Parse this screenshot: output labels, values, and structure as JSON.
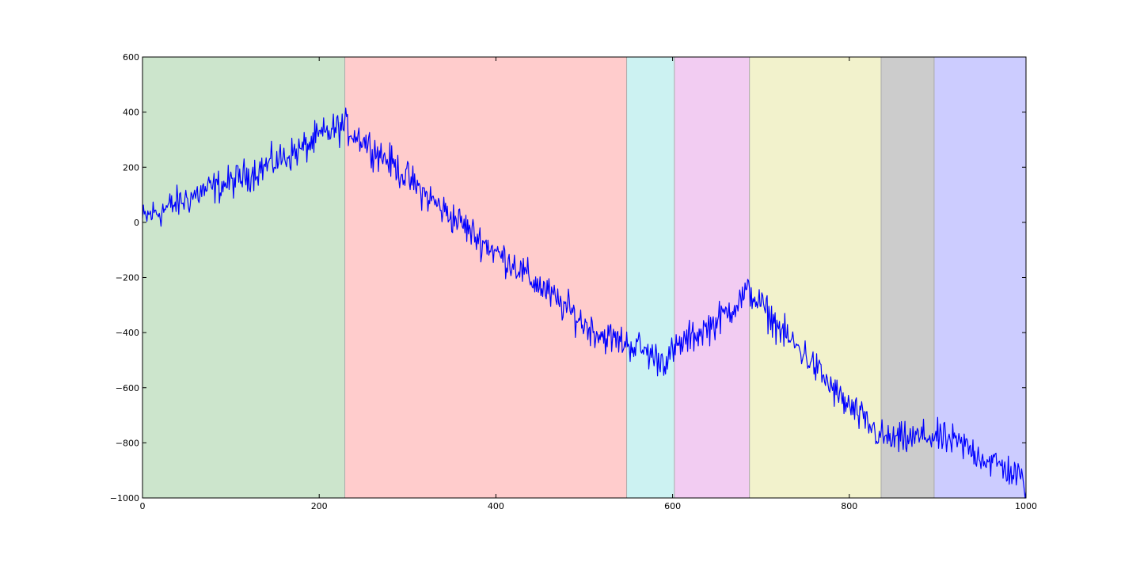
{
  "chart_data": {
    "type": "line",
    "title": "",
    "xlabel": "",
    "ylabel": "",
    "xlim": [
      0,
      1000
    ],
    "ylim": [
      -1000,
      600
    ],
    "grid": false,
    "legend": "none",
    "xticks": [
      0,
      200,
      400,
      600,
      800,
      1000
    ],
    "yticks": [
      600,
      400,
      200,
      0,
      -200,
      -400,
      -600,
      -800,
      -1000
    ],
    "xtick_labels": [
      "0",
      "200",
      "400",
      "600",
      "800",
      "1000"
    ],
    "ytick_labels": [
      "600",
      "400",
      "200",
      "0",
      "−200",
      "−400",
      "−600",
      "−800",
      "−1000"
    ],
    "regions": [
      {
        "x0": 0,
        "x1": 229,
        "color": "#cce5cc"
      },
      {
        "x0": 229,
        "x1": 548,
        "color": "#ffcccc"
      },
      {
        "x0": 548,
        "x1": 602,
        "color": "#ccf2f2"
      },
      {
        "x0": 602,
        "x1": 687,
        "color": "#f2ccf2"
      },
      {
        "x0": 687,
        "x1": 836,
        "color": "#f2f2cc"
      },
      {
        "x0": 836,
        "x1": 896,
        "color": "#cccccc"
      },
      {
        "x0": 896,
        "x1": 1000,
        "color": "#ccccff"
      }
    ],
    "series": [
      {
        "color": "#0000ff",
        "x": [
          0,
          10,
          20,
          30,
          40,
          50,
          60,
          70,
          80,
          90,
          100,
          110,
          120,
          130,
          140,
          150,
          160,
          170,
          180,
          190,
          200,
          210,
          220,
          229,
          240,
          250,
          260,
          270,
          280,
          290,
          300,
          310,
          320,
          330,
          340,
          350,
          360,
          370,
          380,
          390,
          400,
          410,
          420,
          430,
          440,
          450,
          460,
          470,
          480,
          490,
          500,
          510,
          520,
          530,
          540,
          548,
          560,
          570,
          580,
          590,
          602,
          610,
          620,
          630,
          640,
          650,
          660,
          670,
          680,
          687,
          700,
          710,
          720,
          730,
          740,
          750,
          760,
          770,
          780,
          790,
          800,
          810,
          820,
          830,
          836,
          850,
          860,
          870,
          880,
          890,
          896,
          910,
          920,
          930,
          940,
          950,
          960,
          970,
          980,
          990,
          1000
        ],
        "y": [
          10,
          30,
          40,
          55,
          70,
          85,
          100,
          115,
          125,
          135,
          145,
          160,
          175,
          190,
          205,
          220,
          235,
          250,
          265,
          285,
          310,
          325,
          340,
          350,
          320,
          300,
          270,
          245,
          220,
          190,
          160,
          130,
          100,
          75,
          45,
          20,
          0,
          -30,
          -60,
          -80,
          -110,
          -130,
          -150,
          -180,
          -210,
          -230,
          -260,
          -290,
          -310,
          -340,
          -370,
          -390,
          -410,
          -420,
          -430,
          -440,
          -450,
          -470,
          -490,
          -500,
          -470,
          -440,
          -420,
          -400,
          -380,
          -360,
          -330,
          -300,
          -270,
          -250,
          -300,
          -340,
          -380,
          -420,
          -450,
          -480,
          -520,
          -560,
          -600,
          -640,
          -670,
          -700,
          -730,
          -760,
          -780,
          -790,
          -790,
          -785,
          -780,
          -775,
          -780,
          -790,
          -800,
          -810,
          -830,
          -850,
          -870,
          -880,
          -900,
          -920,
          -950
        ]
      }
    ]
  }
}
